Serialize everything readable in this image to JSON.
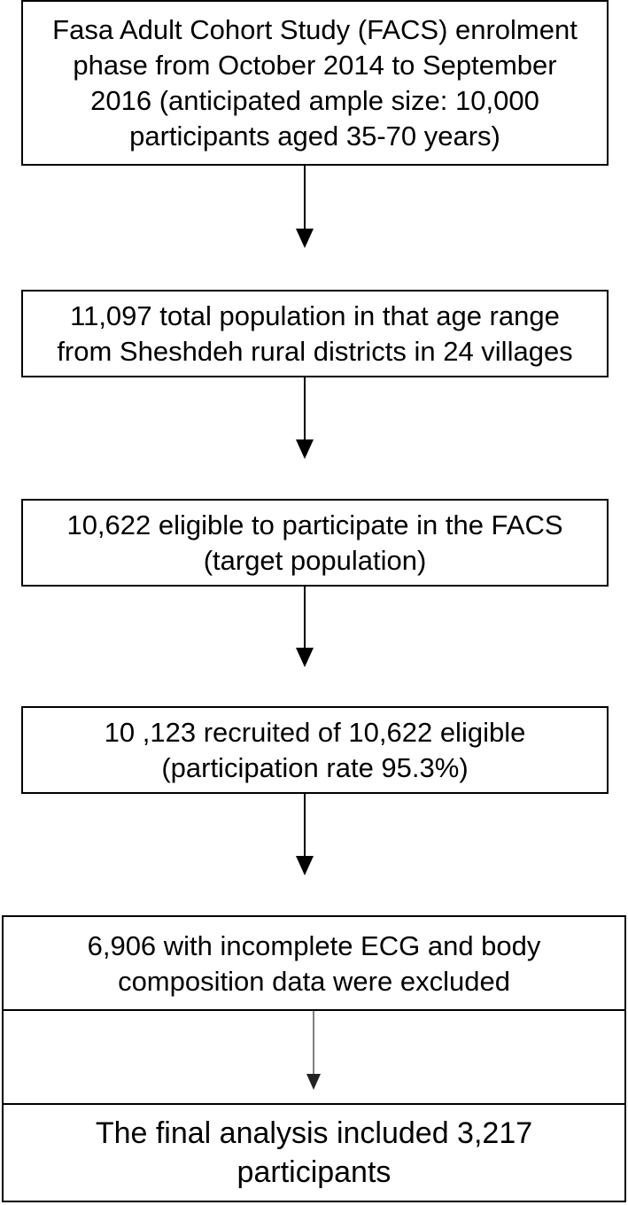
{
  "flowchart": {
    "steps": [
      {
        "text": "Fasa Adult Cohort Study (FACS) enrolment\nphase from October 2014 to September\n2016 (anticipated ample size: 10,000\nparticipants aged 35-70 years)"
      },
      {
        "text": "11,097 total population in that age range\nfrom Sheshdeh rural districts in 24 villages"
      },
      {
        "text": "10,622 eligible to participate in the FACS\n(target population)"
      },
      {
        "text": "10 ,123 recruited of 10,622 eligible\n(participation rate 95.3%)"
      },
      {
        "text": "6,906 with incomplete ECG and body\ncomposition data were excluded"
      },
      {
        "text": "The final analysis included 3,217\nparticipants"
      }
    ],
    "colors": {
      "stroke": "#000000",
      "background": "#ffffff"
    }
  }
}
